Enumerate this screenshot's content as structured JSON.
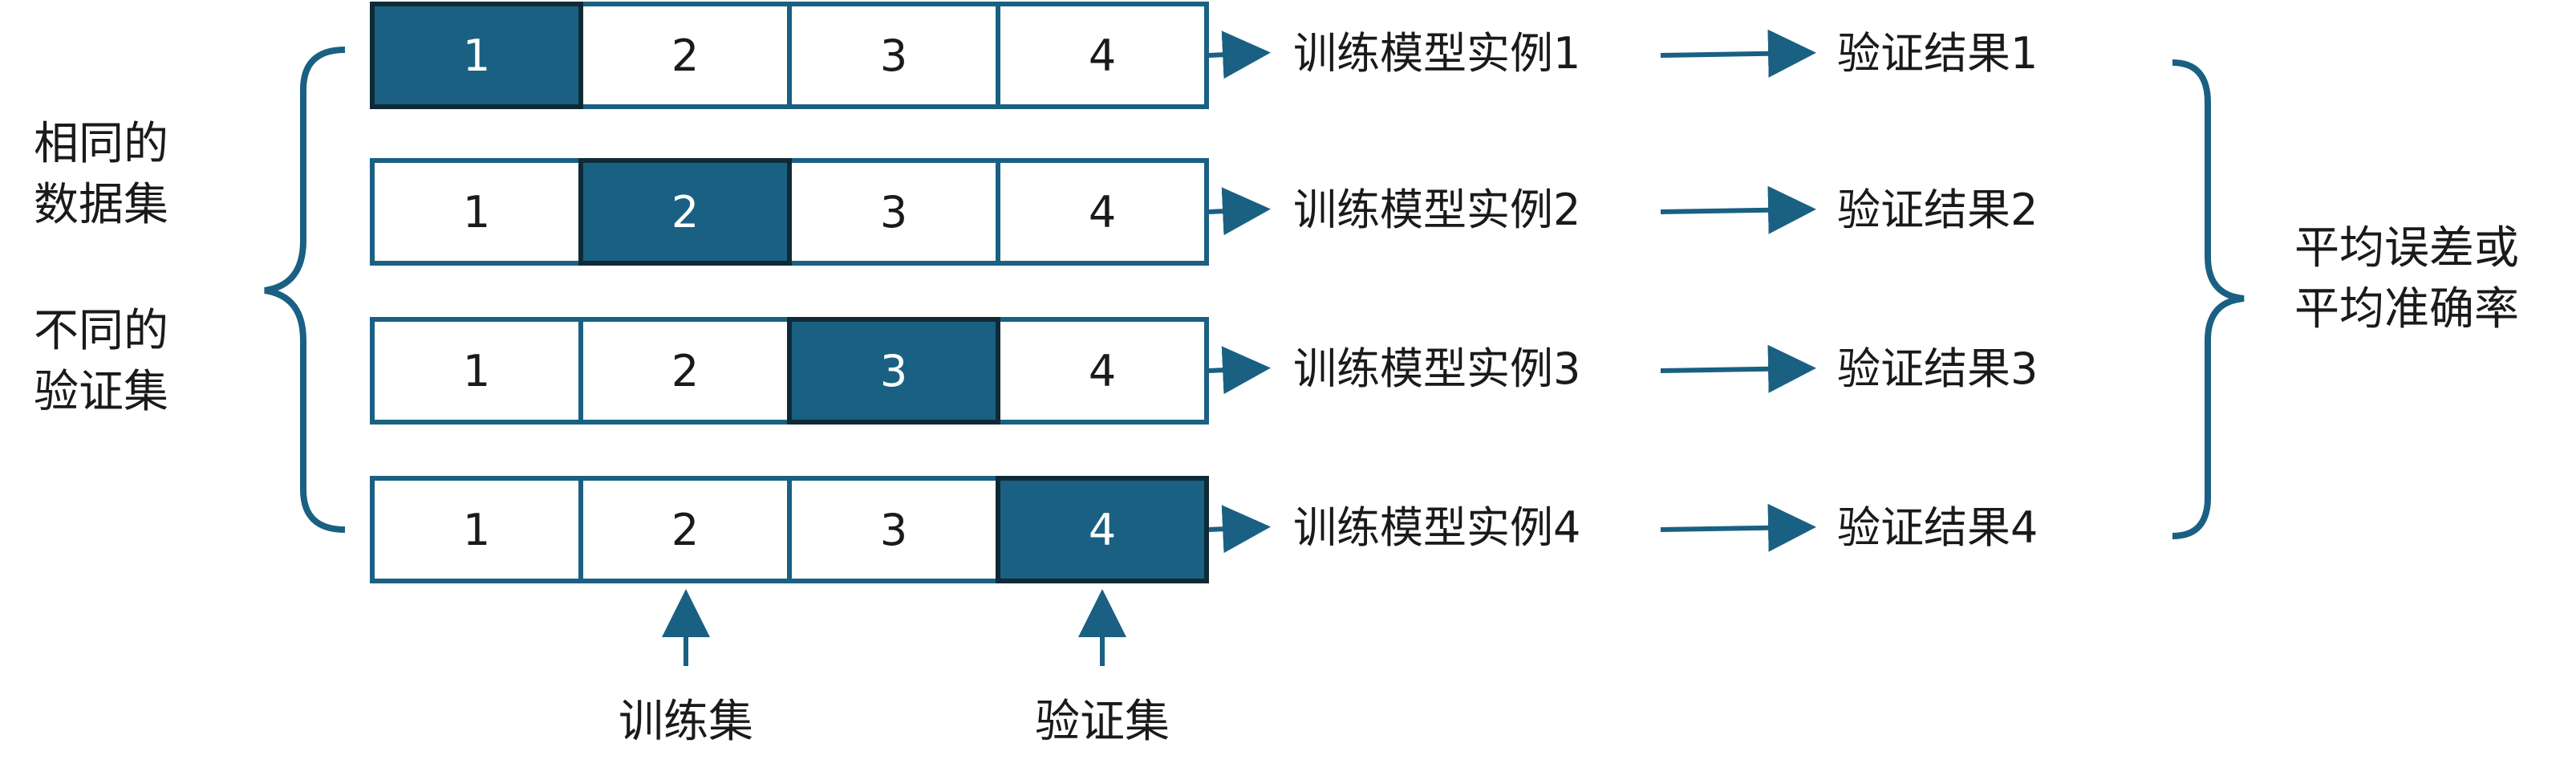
{
  "colors": {
    "accent": "#1a6082",
    "validation_fill": "#1a6082",
    "training_fill": "#ffffff",
    "border": "#1a6082",
    "validation_border": "#0f2a36",
    "text": "#1a1a1a",
    "validation_text": "#ffffff"
  },
  "left_labels": {
    "same_dataset": "相同的\n数据集",
    "different_validation": "不同的\n验证集"
  },
  "rows": [
    {
      "folds": [
        "1",
        "2",
        "3",
        "4"
      ],
      "validation_index": 0,
      "model": "训练模型实例1",
      "result": "验证结果1"
    },
    {
      "folds": [
        "1",
        "2",
        "3",
        "4"
      ],
      "validation_index": 1,
      "model": "训练模型实例2",
      "result": "验证结果2"
    },
    {
      "folds": [
        "1",
        "2",
        "3",
        "4"
      ],
      "validation_index": 2,
      "model": "训练模型实例3",
      "result": "验证结果3"
    },
    {
      "folds": [
        "1",
        "2",
        "3",
        "4"
      ],
      "validation_index": 3,
      "model": "训练模型实例4",
      "result": "验证结果4"
    }
  ],
  "bottom_labels": {
    "training_set": "训练集",
    "validation_set": "验证集"
  },
  "summary": "平均误差或\n平均准确率",
  "icons": [
    "left-brace",
    "right-brace",
    "arrow-right",
    "arrow-up"
  ]
}
